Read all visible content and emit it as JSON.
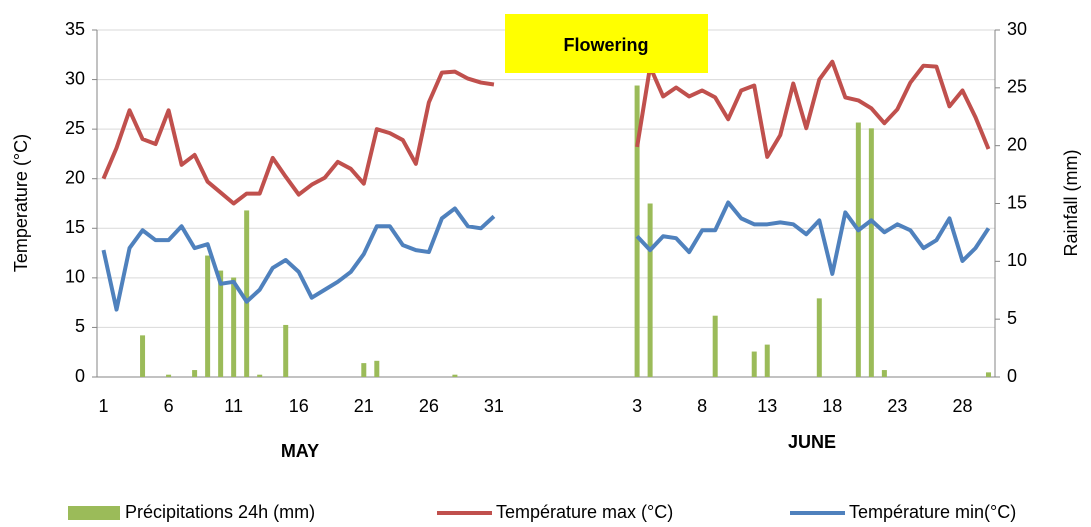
{
  "chart_data": {
    "type": "combo",
    "y_label": "Temperature (°C)",
    "y2_label": "Rainfall (mm)",
    "annotations": {
      "flowering": "Flowering",
      "may": "MAY",
      "june": "JUNE"
    },
    "flowering_color": "#ffff00",
    "categories": [
      "1",
      null,
      null,
      null,
      null,
      "6",
      null,
      null,
      null,
      null,
      "11",
      null,
      null,
      null,
      null,
      "16",
      null,
      null,
      null,
      null,
      "21",
      null,
      null,
      null,
      null,
      "26",
      null,
      null,
      null,
      null,
      "31",
      null,
      null,
      null,
      null,
      null,
      null,
      null,
      null,
      null,
      null,
      "3",
      null,
      null,
      null,
      null,
      "8",
      null,
      null,
      null,
      null,
      "13",
      null,
      null,
      null,
      null,
      "18",
      null,
      null,
      null,
      null,
      "23",
      null,
      null,
      null,
      null,
      "28",
      null,
      null
    ],
    "ylim": [
      0,
      35
    ],
    "yticks": [
      0,
      5,
      10,
      15,
      20,
      25,
      30,
      35
    ],
    "y2lim": [
      0,
      30
    ],
    "y2ticks": [
      0,
      5,
      10,
      15,
      20,
      25,
      30
    ],
    "grid": true,
    "legend": "bottom",
    "series": [
      {
        "name": "Précipitations 24h (mm)",
        "type": "bar",
        "axis": "y2",
        "color": "#9bbb59",
        "values": [
          0,
          0,
          0,
          3.6,
          0,
          0.2,
          0,
          0.6,
          10.5,
          9.2,
          8.6,
          14.4,
          0.2,
          0,
          4.5,
          0,
          0,
          0,
          0,
          0,
          1.2,
          1.4,
          0,
          0,
          0,
          0,
          0,
          0.2,
          0,
          0,
          0,
          null,
          null,
          null,
          null,
          null,
          null,
          null,
          null,
          0,
          0,
          25.2,
          15.0,
          0,
          0,
          0,
          0,
          5.3,
          0,
          0,
          2.2,
          2.8,
          0,
          0,
          0,
          6.8,
          0,
          0,
          22.0,
          21.5,
          0.6,
          0,
          0,
          0,
          0,
          0,
          0,
          0,
          0.4
        ]
      },
      {
        "name": "Température max (°C)",
        "type": "line",
        "axis": "y",
        "color": "#c0504d",
        "values": [
          20.0,
          23.1,
          26.9,
          24.0,
          23.5,
          26.9,
          21.4,
          22.4,
          19.7,
          18.6,
          17.5,
          18.5,
          18.5,
          22.1,
          20.2,
          18.4,
          19.4,
          20.1,
          21.7,
          21.0,
          19.5,
          25.0,
          24.6,
          23.9,
          21.5,
          27.7,
          30.7,
          30.8,
          30.1,
          29.7,
          29.5,
          null,
          null,
          null,
          null,
          null,
          null,
          null,
          null,
          null,
          null,
          23.2,
          31.3,
          28.3,
          29.2,
          28.3,
          28.9,
          28.2,
          26.0,
          28.9,
          29.4,
          22.2,
          24.4,
          29.6,
          25.1,
          30.0,
          31.8,
          28.2,
          27.9,
          27.1,
          25.6,
          27.0,
          29.7,
          31.4,
          31.3,
          27.3,
          28.9,
          26.2,
          23.0
        ]
      },
      {
        "name": "Température min(°C)",
        "type": "line",
        "axis": "y",
        "color": "#4f81bd",
        "values": [
          12.8,
          6.8,
          13.0,
          14.8,
          13.8,
          13.8,
          15.2,
          13.0,
          13.4,
          9.4,
          9.6,
          7.6,
          8.8,
          11.0,
          11.8,
          10.6,
          8.0,
          8.8,
          9.6,
          10.6,
          12.4,
          15.2,
          15.2,
          13.3,
          12.8,
          12.6,
          16.0,
          17.0,
          15.2,
          15.0,
          16.2,
          null,
          null,
          null,
          null,
          null,
          null,
          null,
          null,
          null,
          null,
          14.2,
          12.8,
          14.2,
          14.0,
          12.6,
          14.8,
          14.8,
          17.6,
          16.0,
          15.4,
          15.4,
          15.6,
          15.4,
          14.4,
          15.8,
          10.4,
          16.6,
          14.8,
          15.8,
          14.6,
          15.4,
          14.8,
          13.0,
          13.8,
          16.0,
          11.7,
          13.0,
          15.0
        ]
      }
    ]
  }
}
